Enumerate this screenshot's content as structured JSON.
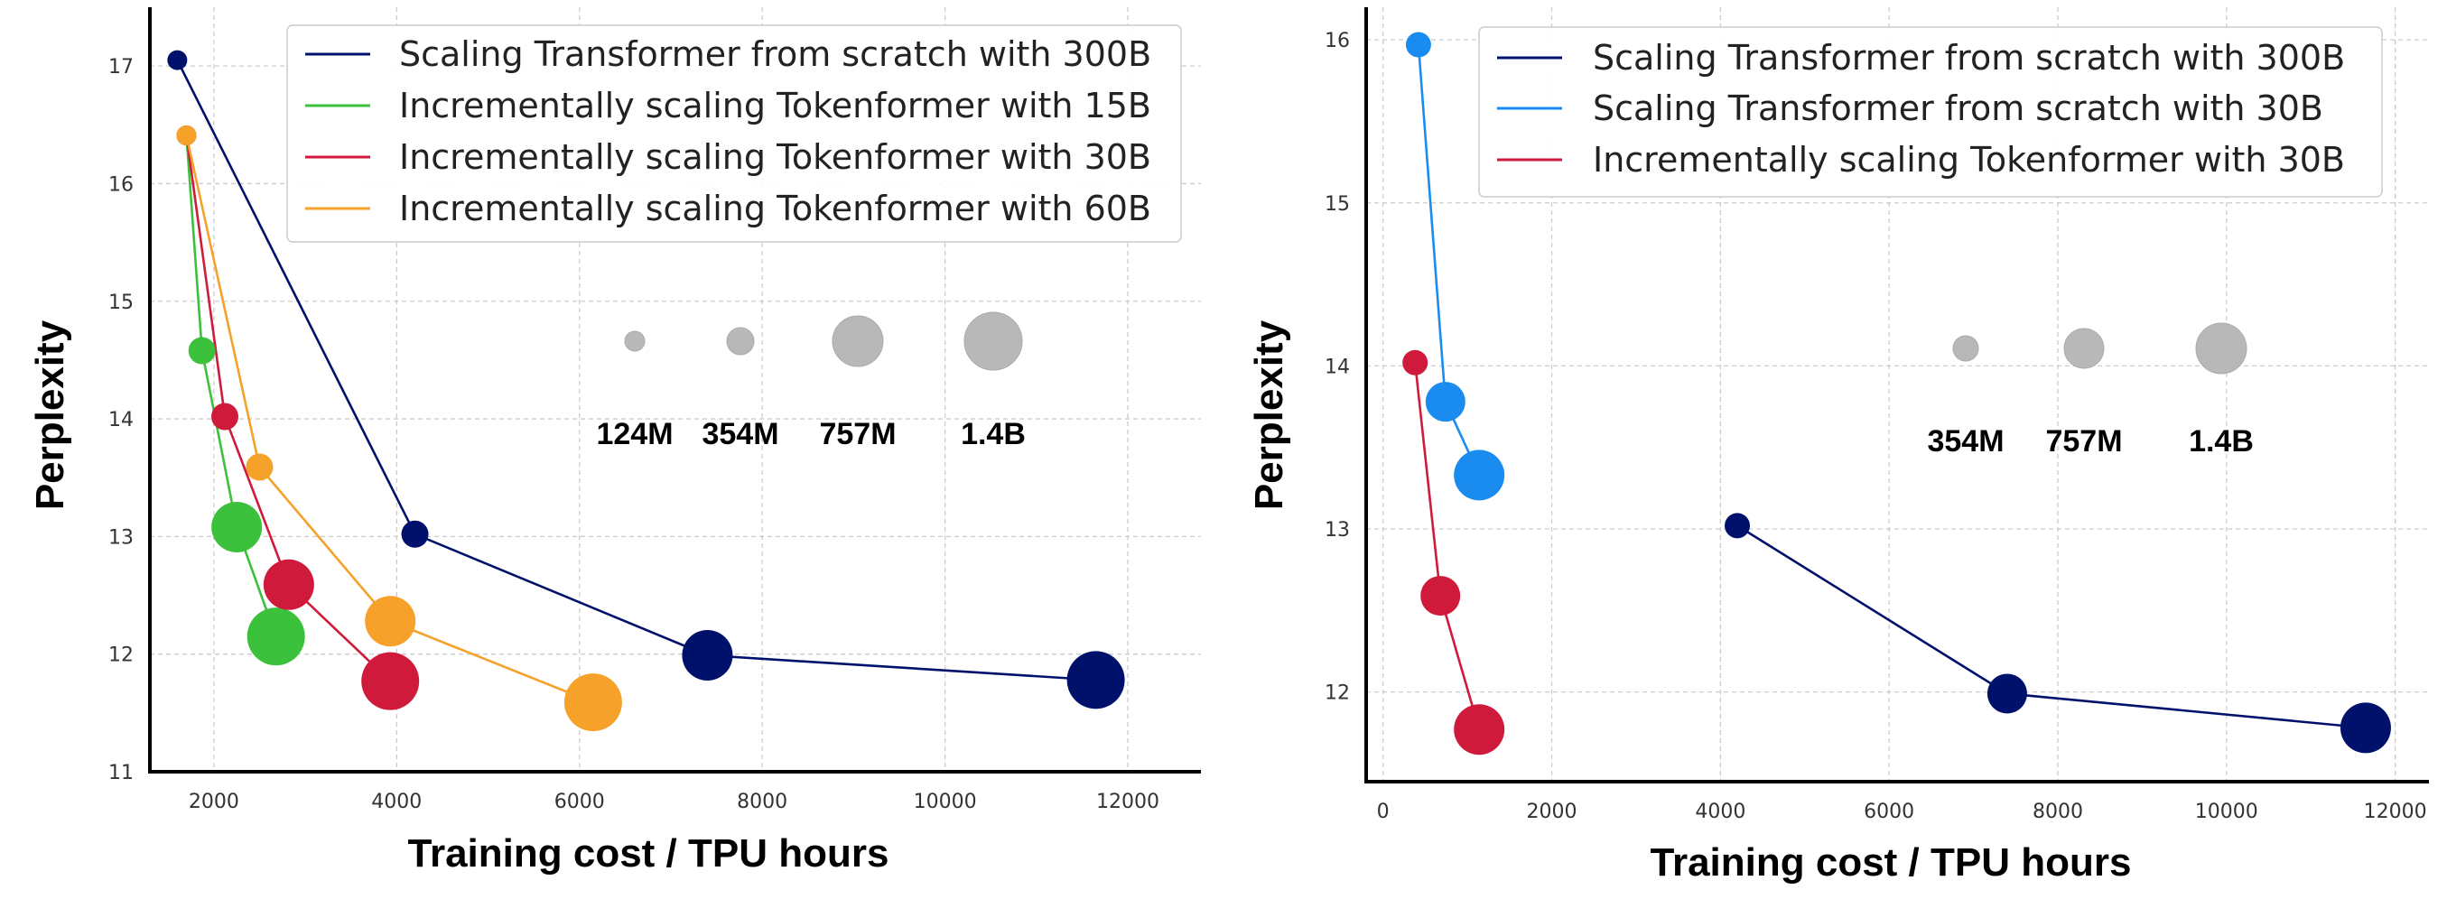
{
  "chart_data": [
    {
      "type": "scatter",
      "xlabel": "Training cost / TPU hours",
      "ylabel": "Perplexity",
      "xlim": [
        1300,
        12800
      ],
      "ylim": [
        11,
        17.5
      ],
      "xticks": [
        2000,
        4000,
        6000,
        8000,
        10000,
        12000
      ],
      "yticks": [
        11,
        12,
        13,
        14,
        15,
        16,
        17
      ],
      "grid": true,
      "legend_position": "top-right",
      "size_legend": [
        "124M",
        "354M",
        "757M",
        "1.4B"
      ],
      "series": [
        {
          "name": "Scaling Transformer from scratch with 300B",
          "color": "#00116b",
          "x": [
            1600,
            4200,
            7400,
            11650
          ],
          "y": [
            17.05,
            13.02,
            11.99,
            11.78
          ],
          "sizes": [
            "124M",
            "354M",
            "757M",
            "1.4B"
          ]
        },
        {
          "name": "Incrementally scaling Tokenformer with 15B",
          "color": "#3cc13c",
          "x": [
            1700,
            1870,
            2250,
            2680
          ],
          "y": [
            16.41,
            14.58,
            13.08,
            12.15
          ],
          "sizes": [
            "124M",
            "354M",
            "757M",
            "1.4B"
          ]
        },
        {
          "name": "Incrementally scaling Tokenformer with 30B",
          "color": "#d01a3c",
          "x": [
            1700,
            2120,
            2820,
            3930
          ],
          "y": [
            16.41,
            14.02,
            12.59,
            11.77
          ],
          "sizes": [
            "124M",
            "354M",
            "757M",
            "1.4B"
          ]
        },
        {
          "name": "Incrementally scaling Tokenformer with 60B",
          "color": "#f5a12a",
          "x": [
            1700,
            2500,
            3930,
            6150
          ],
          "y": [
            16.41,
            13.59,
            12.28,
            11.59
          ],
          "sizes": [
            "124M",
            "354M",
            "757M",
            "1.4B"
          ]
        }
      ]
    },
    {
      "type": "scatter",
      "xlabel": "Training cost / TPU hours",
      "ylabel": "Perplexity",
      "xlim": [
        -200,
        12400
      ],
      "ylim": [
        11.45,
        16.2
      ],
      "xticks": [
        0,
        2000,
        4000,
        6000,
        8000,
        10000,
        12000
      ],
      "yticks": [
        12,
        13,
        14,
        15,
        16
      ],
      "grid": true,
      "legend_position": "top-right",
      "size_legend": [
        "354M",
        "757M",
        "1.4B"
      ],
      "series": [
        {
          "name": "Scaling Transformer from scratch with 300B",
          "color": "#00116b",
          "x": [
            4200,
            7400,
            11650
          ],
          "y": [
            13.02,
            11.99,
            11.78
          ],
          "sizes": [
            "354M",
            "757M",
            "1.4B"
          ]
        },
        {
          "name": "Scaling Transformer from scratch with 30B",
          "color": "#1a8cf0",
          "x": [
            420,
            740,
            1140
          ],
          "y": [
            15.97,
            13.78,
            13.33
          ],
          "sizes": [
            "354M",
            "757M",
            "1.4B"
          ]
        },
        {
          "name": "Incrementally scaling Tokenformer with 30B",
          "color": "#d01a3c",
          "x": [
            380,
            680,
            1140
          ],
          "y": [
            14.02,
            12.59,
            11.77
          ],
          "sizes": [
            "354M",
            "757M",
            "1.4B"
          ]
        }
      ]
    }
  ],
  "colors": {
    "navy": "#00116b",
    "green": "#3cc13c",
    "red": "#d01a3c",
    "orange": "#f5a12a",
    "blue": "#1a8cf0",
    "size_bubble": "#b8b8b8"
  }
}
